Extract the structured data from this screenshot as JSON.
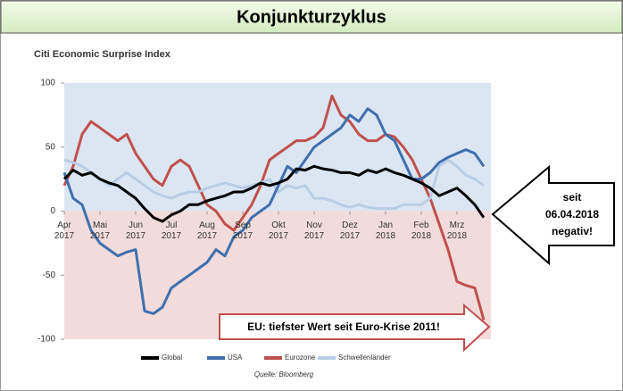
{
  "header": {
    "title": "Konjunkturzyklus"
  },
  "chart_data": {
    "type": "line",
    "title": "Citi Economic Surprise Index",
    "source": "Quelle: Bloomberg",
    "x": [
      0,
      0.25,
      0.5,
      0.75,
      1,
      1.25,
      1.5,
      1.75,
      2,
      2.25,
      2.5,
      2.75,
      3,
      3.25,
      3.5,
      3.75,
      4,
      4.25,
      4.5,
      4.75,
      5,
      5.25,
      5.5,
      5.75,
      6,
      6.25,
      6.5,
      6.75,
      7,
      7.25,
      7.5,
      7.75,
      8,
      8.25,
      8.5,
      8.75,
      9,
      9.25,
      9.5,
      9.75,
      10,
      10.25,
      10.5,
      10.75,
      11,
      11.25,
      11.5,
      11.75
    ],
    "xlim": [
      0,
      11.95
    ],
    "xticks": [
      {
        "value": 0,
        "label": "Apr 2017"
      },
      {
        "value": 1,
        "label": "Mai 2017"
      },
      {
        "value": 2,
        "label": "Jun 2017"
      },
      {
        "value": 3,
        "label": "Jul 2017"
      },
      {
        "value": 4,
        "label": "Aug 2017"
      },
      {
        "value": 5,
        "label": "Sep 2017"
      },
      {
        "value": 6,
        "label": "Okt 2017"
      },
      {
        "value": 7,
        "label": "Nov 2017"
      },
      {
        "value": 8,
        "label": "Dez 2017"
      },
      {
        "value": 9,
        "label": "Jan 2018"
      },
      {
        "value": 10,
        "label": "Feb 2018"
      },
      {
        "value": 11,
        "label": "Mrz 2018"
      }
    ],
    "ylim": [
      -100,
      100
    ],
    "yticks": [
      100,
      50,
      0,
      -50,
      -100
    ],
    "legend": "bottom",
    "series": [
      {
        "name": "Global",
        "color": "#000000",
        "values": [
          25,
          32,
          28,
          30,
          25,
          22,
          20,
          15,
          10,
          2,
          -5,
          -8,
          -3,
          0,
          5,
          5,
          8,
          10,
          12,
          15,
          15,
          18,
          22,
          20,
          22,
          25,
          33,
          32,
          35,
          33,
          32,
          30,
          30,
          28,
          32,
          30,
          33,
          30,
          28,
          25,
          22,
          18,
          12,
          15,
          18,
          12,
          5,
          -5
        ]
      },
      {
        "name": "USA",
        "color": "#3f6fae",
        "values": [
          30,
          10,
          5,
          -15,
          -25,
          -30,
          -35,
          -32,
          -30,
          -78,
          -80,
          -75,
          -60,
          -55,
          -50,
          -45,
          -40,
          -30,
          -35,
          -20,
          -15,
          -5,
          0,
          5,
          20,
          35,
          30,
          40,
          50,
          55,
          60,
          65,
          75,
          70,
          80,
          75,
          60,
          55,
          40,
          25,
          25,
          30,
          38,
          42,
          45,
          48,
          45,
          35
        ]
      },
      {
        "name": "Eurozone",
        "color": "#c0504d",
        "values": [
          20,
          35,
          60,
          70,
          65,
          60,
          55,
          60,
          45,
          35,
          25,
          20,
          35,
          40,
          35,
          20,
          5,
          0,
          -10,
          -15,
          -5,
          5,
          20,
          40,
          45,
          50,
          55,
          55,
          58,
          65,
          90,
          75,
          70,
          60,
          55,
          55,
          60,
          58,
          50,
          40,
          25,
          10,
          -10,
          -30,
          -55,
          -58,
          -60,
          -85
        ]
      },
      {
        "name": "Schwellenländer",
        "color": "#b9cde5",
        "values": [
          40,
          38,
          35,
          30,
          25,
          20,
          25,
          30,
          25,
          20,
          15,
          12,
          10,
          13,
          15,
          15,
          18,
          20,
          22,
          20,
          18,
          20,
          22,
          25,
          15,
          20,
          18,
          20,
          10,
          10,
          8,
          5,
          3,
          5,
          3,
          2,
          2,
          2,
          5,
          5,
          5,
          10,
          35,
          40,
          35,
          28,
          25,
          20
        ]
      }
    ],
    "annotations": [
      {
        "lines": [
          "seit",
          "06.04.2018",
          "negativ!"
        ]
      },
      {
        "lines": [
          "EU: tiefster Wert seit Euro-Krise 2011!"
        ]
      }
    ]
  }
}
